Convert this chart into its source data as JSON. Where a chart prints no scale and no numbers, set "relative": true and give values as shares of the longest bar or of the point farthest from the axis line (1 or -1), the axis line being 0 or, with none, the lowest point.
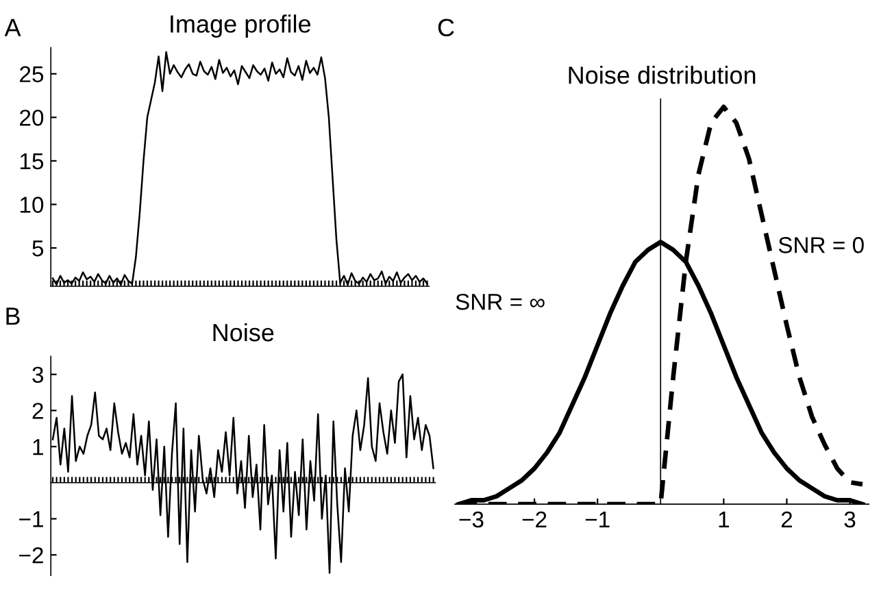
{
  "chart_data": [
    {
      "type": "line",
      "title": "Image profile",
      "annotations": [
        "A"
      ],
      "categories": [
        null,
        null,
        null,
        null,
        null,
        null,
        null,
        null,
        null,
        null,
        null,
        null,
        null,
        null,
        null,
        null,
        null,
        null,
        null,
        null,
        null,
        null,
        null,
        null,
        null,
        null,
        null,
        null,
        null,
        null,
        null,
        null,
        null,
        null,
        null,
        null,
        null,
        null,
        null,
        null,
        null,
        null,
        null,
        null,
        null,
        null,
        null,
        null,
        null,
        null,
        null,
        null,
        null,
        null,
        null,
        null,
        null,
        null,
        null,
        null,
        null,
        null,
        null,
        null,
        null,
        null,
        null,
        null,
        null,
        null,
        null,
        null,
        null,
        null,
        null,
        null,
        null,
        null,
        null,
        null,
        null,
        null,
        null,
        null,
        null,
        null,
        null,
        null,
        null,
        null,
        null,
        null,
        null,
        null,
        null,
        null,
        null,
        null,
        null,
        null
      ],
      "ylim": [
        0.6,
        28
      ],
      "yticks": [
        5,
        10,
        15,
        20,
        25
      ],
      "series": [
        {
          "color": "#000000",
          "line_style": "solid",
          "values": [
            1.5,
            0.8,
            1.8,
            1.0,
            1.3,
            0.9,
            1.6,
            1.2,
            2.2,
            1.4,
            1.7,
            1.1,
            2.0,
            1.3,
            0.9,
            1.8,
            1.0,
            1.5,
            0.8,
            1.9,
            1.2,
            0.9,
            4,
            9,
            15,
            20,
            22,
            24,
            27,
            23,
            27.5,
            25,
            26,
            25.2,
            24.6,
            25.5,
            26.1,
            25.0,
            24.8,
            26.4,
            25.3,
            24.9,
            25.8,
            24.4,
            26.6,
            25.1,
            25.7,
            24.7,
            25.4,
            23.8,
            25.9,
            25.2,
            24.5,
            26.0,
            25.3,
            24.9,
            25.6,
            24.2,
            26.3,
            25.0,
            25.5,
            24.6,
            26.8,
            25.2,
            24.8,
            25.9,
            24.3,
            26.5,
            25.1,
            25.7,
            24.9,
            26.9,
            24.5,
            20,
            13,
            6,
            1.0,
            1.8,
            0.8,
            2.1,
            1.2,
            0.9,
            1.6,
            1.1,
            2.0,
            1.3,
            1.5,
            2.3,
            0.9,
            1.7,
            1.2,
            2.2,
            1.0,
            1.6,
            2.0,
            1.3,
            1.8,
            1.1,
            1.5,
            0.9
          ]
        }
      ]
    },
    {
      "type": "line",
      "title": "Noise",
      "annotations": [
        "B"
      ],
      "categories": [
        null,
        null,
        null,
        null,
        null,
        null,
        null,
        null,
        null,
        null,
        null,
        null,
        null,
        null,
        null,
        null,
        null,
        null,
        null,
        null,
        null,
        null,
        null,
        null,
        null,
        null,
        null,
        null,
        null,
        null,
        null,
        null,
        null,
        null,
        null,
        null,
        null,
        null,
        null,
        null,
        null,
        null,
        null,
        null,
        null,
        null,
        null,
        null,
        null,
        null,
        null,
        null,
        null,
        null,
        null,
        null,
        null,
        null,
        null,
        null,
        null,
        null,
        null,
        null,
        null,
        null,
        null,
        null,
        null,
        null,
        null,
        null,
        null,
        null,
        null,
        null,
        null,
        null,
        null,
        null,
        null,
        null,
        null,
        null,
        null,
        null,
        null,
        null,
        null,
        null,
        null,
        null,
        null,
        null,
        null,
        null,
        null,
        null,
        null,
        null
      ],
      "ylim": [
        -2.57,
        3.5
      ],
      "yticks": [
        {
          "value": -2,
          "label": "−2"
        },
        {
          "value": -1,
          "label": "−1"
        },
        1,
        2,
        3
      ],
      "series": [
        {
          "color": "#000000",
          "line_style": "solid",
          "values": [
            1.2,
            1.8,
            0.5,
            1.5,
            0.3,
            2.4,
            0.6,
            1.0,
            0.8,
            1.3,
            1.6,
            2.5,
            1.3,
            1.2,
            1.5,
            0.9,
            2.2,
            1.4,
            0.8,
            1.1,
            0.7,
            1.9,
            0.5,
            1.3,
            0.2,
            1.7,
            -0.2,
            1.2,
            -0.9,
            1.0,
            -1.5,
            0.8,
            2.2,
            -1.7,
            1.5,
            -2.2,
            0.9,
            -0.8,
            1.3,
            0.1,
            -0.3,
            0.4,
            -0.4,
            0.9,
            0.3,
            1.4,
            0.2,
            1.8,
            -0.3,
            0.6,
            -0.7,
            1.3,
            -0.4,
            0.5,
            -1.3,
            1.6,
            -0.6,
            0.2,
            -2.1,
            0.9,
            -0.8,
            1.1,
            -1.5,
            0.3,
            -0.9,
            1.2,
            -1.3,
            0.6,
            -0.5,
            1.9,
            -1.0,
            0.2,
            -2.5,
            1.7,
            -0.6,
            -2.2,
            0.4,
            -0.8,
            1.3,
            2.0,
            0.9,
            1.6,
            2.9,
            1.0,
            0.6,
            2.2,
            1.4,
            0.8,
            2.0,
            1.1,
            2.8,
            3.0,
            0.7,
            2.4,
            1.2,
            1.8,
            0.9,
            1.6,
            1.3,
            0.4
          ]
        }
      ]
    },
    {
      "type": "line",
      "title": "Noise distribution",
      "annotations": [
        "C"
      ],
      "relative": true,
      "xlim": [
        -3.26,
        3.3
      ],
      "xticks": [
        {
          "value": -3,
          "label": "−3"
        },
        {
          "value": -2,
          "label": "−2"
        },
        {
          "value": -1,
          "label": "−1"
        },
        1,
        2,
        3
      ],
      "x": [
        -3.2,
        -3.0,
        -2.8,
        -2.6,
        -2.4,
        -2.2,
        -2.0,
        -1.8,
        -1.6,
        -1.4,
        -1.2,
        -1.0,
        -0.8,
        -0.6,
        -0.4,
        -0.2,
        0,
        0.2,
        0.4,
        0.6,
        0.8,
        1.0,
        1.2,
        1.4,
        1.6,
        1.8,
        2.0,
        2.2,
        2.4,
        2.6,
        2.8,
        3.0,
        3.2
      ],
      "series": [
        {
          "name": "SNR = ∞",
          "color": "#000000",
          "line_style": "solid",
          "values": [
            0.0,
            0.01,
            0.01,
            0.02,
            0.04,
            0.06,
            0.09,
            0.13,
            0.18,
            0.25,
            0.32,
            0.4,
            0.48,
            0.55,
            0.61,
            0.64,
            0.66,
            0.64,
            0.61,
            0.55,
            0.48,
            0.4,
            0.32,
            0.25,
            0.18,
            0.13,
            0.09,
            0.06,
            0.04,
            0.02,
            0.01,
            0.01,
            0.0
          ]
        },
        {
          "name": "SNR = 0",
          "color": "#000000",
          "line_style": "dashed",
          "values": [
            0,
            0,
            0,
            0,
            0,
            0,
            0,
            0,
            0,
            0,
            0,
            0,
            0,
            0,
            0,
            0,
            0,
            0.32,
            0.61,
            0.83,
            0.96,
            1,
            0.96,
            0.87,
            0.73,
            0.59,
            0.45,
            0.32,
            0.22,
            0.15,
            0.09,
            0.055,
            0.05
          ]
        }
      ]
    }
  ]
}
